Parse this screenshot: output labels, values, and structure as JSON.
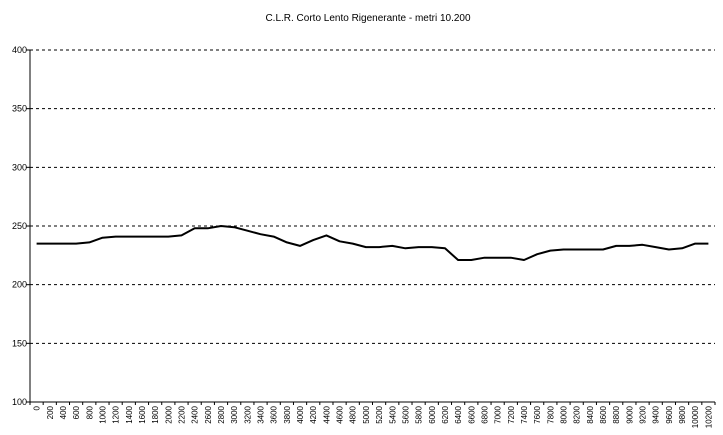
{
  "chart_data": {
    "type": "line",
    "title": "C.L.R. Corto Lento Rigenerante - metri 10.200",
    "xlabel": "",
    "ylabel": "",
    "ylim": [
      100,
      400
    ],
    "yticks": [
      "100",
      "150",
      "200",
      "250",
      "300",
      "350",
      "400"
    ],
    "grid": true,
    "categories": [
      "0",
      "200",
      "400",
      "600",
      "800",
      "1000",
      "1200",
      "1400",
      "1600",
      "1800",
      "2000",
      "2200",
      "2400",
      "2600",
      "2800",
      "3000",
      "3200",
      "3400",
      "3600",
      "3800",
      "4000",
      "4200",
      "4400",
      "4600",
      "4800",
      "5000",
      "5200",
      "5400",
      "5600",
      "5800",
      "6000",
      "6200",
      "6400",
      "6600",
      "6800",
      "7000",
      "7200",
      "7400",
      "7600",
      "7800",
      "8000",
      "8200",
      "8400",
      "8600",
      "8800",
      "9000",
      "9200",
      "9400",
      "9600",
      "9800",
      "10000",
      "10200"
    ],
    "series": [
      {
        "color": "#000000",
        "values": [
          235,
          235,
          235,
          235,
          236,
          240,
          241,
          241,
          241,
          241,
          241,
          242,
          248,
          248,
          250,
          249,
          246,
          243,
          241,
          236,
          233,
          238,
          242,
          237,
          235,
          232,
          232,
          233,
          231,
          232,
          232,
          231,
          221,
          221,
          223,
          223,
          223,
          221,
          226,
          229,
          230,
          230,
          230,
          230,
          233,
          233,
          234,
          232,
          230,
          231,
          235,
          235
        ]
      }
    ]
  }
}
